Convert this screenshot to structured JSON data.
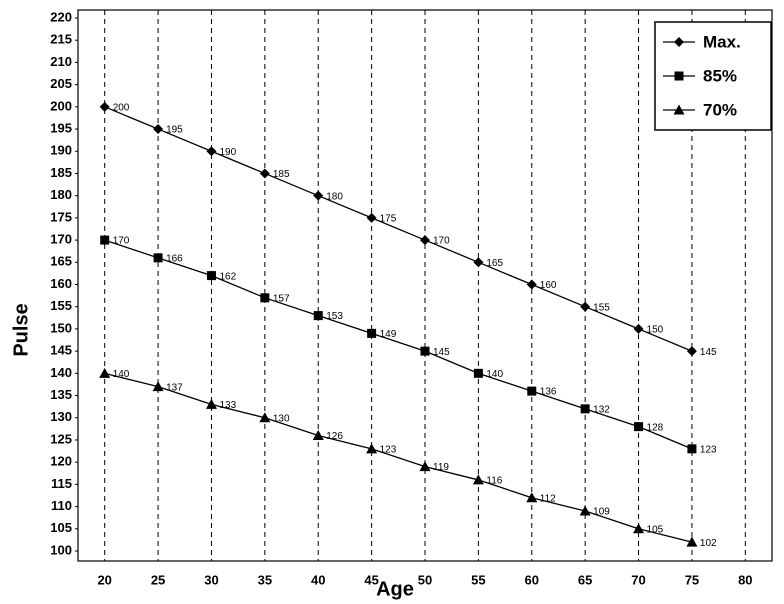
{
  "chart_data": {
    "type": "line",
    "x_label": "Age",
    "y_label": "Pulse",
    "x": [
      20,
      25,
      30,
      35,
      40,
      45,
      50,
      55,
      60,
      65,
      70,
      75
    ],
    "series": [
      {
        "name": "Max.",
        "color": "#000000",
        "marker": "diamond",
        "values": [
          200,
          195,
          190,
          185,
          180,
          175,
          170,
          165,
          160,
          155,
          150,
          145
        ]
      },
      {
        "name": "85%",
        "color": "#000000",
        "marker": "square",
        "values": [
          170,
          166,
          162,
          157,
          153,
          149,
          145,
          140,
          136,
          132,
          128,
          123
        ]
      },
      {
        "name": "70%",
        "color": "#000000",
        "marker": "triangle",
        "values": [
          140,
          137,
          133,
          130,
          126,
          123,
          119,
          116,
          112,
          109,
          105,
          102
        ]
      }
    ],
    "xlim": [
      17.5,
      82.5
    ],
    "xticks": [
      20,
      25,
      30,
      35,
      40,
      45,
      50,
      55,
      60,
      65,
      70,
      75,
      80
    ],
    "ylim": [
      100,
      220
    ],
    "yticks": [
      100,
      105,
      110,
      115,
      120,
      125,
      130,
      135,
      140,
      145,
      150,
      155,
      160,
      165,
      170,
      175,
      180,
      185,
      190,
      195,
      200,
      205,
      210,
      215,
      220
    ],
    "grid": true,
    "legend": "upper right"
  }
}
